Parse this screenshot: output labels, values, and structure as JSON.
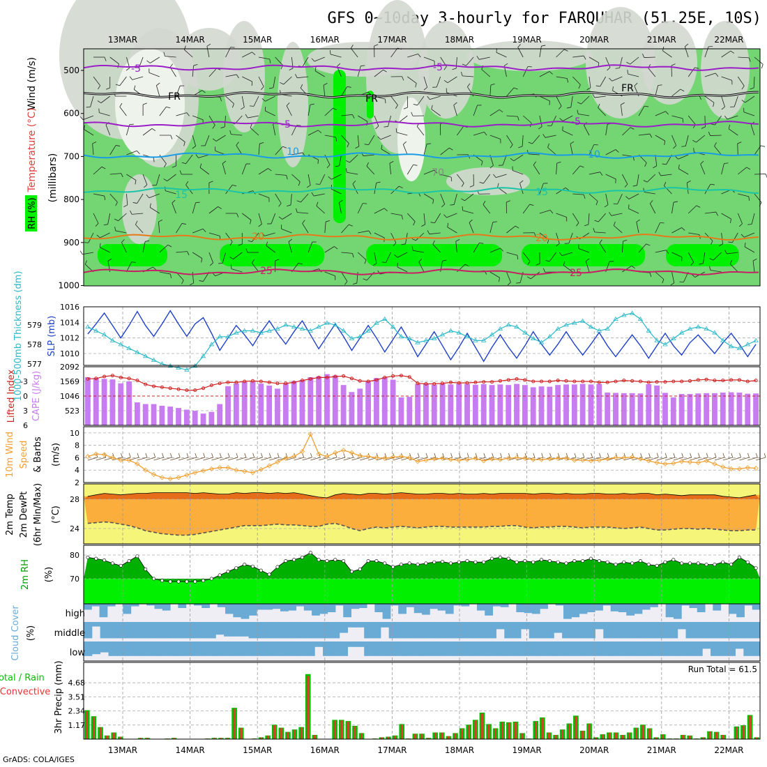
{
  "title": "GFS 0~10day 3-hourly for FARQUHAR (51.25E, 10S)",
  "footer": "GrADS: COLA/IGES",
  "dates": [
    "13MAR",
    "14MAR",
    "15MAR",
    "16MAR",
    "17MAR",
    "18MAR",
    "19MAR",
    "20MAR",
    "21MAR",
    "22MAR"
  ],
  "colors": {
    "rh_light": "#d3d8d0",
    "rh_mid": "#73d673",
    "rh_bright": "#00f000",
    "temp_m5": "#9b1fc6",
    "temp_fr": "#000000",
    "temp_10": "#1a9be6",
    "temp_15": "#1ac4a6",
    "temp_20": "#e67a1a",
    "temp_25": "#c81e64",
    "thickness": "#2ab9c8",
    "slp": "#2040c8",
    "lifted": "#d02020",
    "cape": "#c77cf0",
    "wind10": "#f0a030",
    "t2m_fill": "#e66e1a",
    "dew_fill": "#fcae3c",
    "yellow": "#f5f57a",
    "rh2m_dark": "#00b000",
    "rh2m_bright": "#00f000",
    "cloud": "#6aabd6",
    "cloud_bg": "#eeeef4",
    "precip_total": "#00c000",
    "precip_conv": "#f03030"
  },
  "panels": {
    "upper": {
      "ylabel_rh": "RH (%)",
      "ylabel_temp": "Temperature (°C)",
      "ylabel_wind": "Wind (m/s)",
      "ylabel_unit": "(millibars)",
      "levels": [
        "500",
        "600",
        "700",
        "800",
        "900",
        "1000"
      ],
      "contour_labels": [
        {
          "text": "-5",
          "kind": "m5"
        },
        {
          "text": "-5",
          "kind": "m5"
        },
        {
          "text": "FR",
          "kind": "fr"
        },
        {
          "text": "FR",
          "kind": "fr"
        },
        {
          "text": "FR",
          "kind": "fr"
        },
        {
          "text": "-5",
          "kind": "m5"
        },
        {
          "text": "-5",
          "kind": "m5"
        },
        {
          "text": "10",
          "kind": "c10"
        },
        {
          "text": "10",
          "kind": "c10"
        },
        {
          "text": "15",
          "kind": "c15"
        },
        {
          "text": "15",
          "kind": "c15"
        },
        {
          "text": "20",
          "kind": "c20"
        },
        {
          "text": "20",
          "kind": "c20"
        },
        {
          "text": "25",
          "kind": "c25"
        },
        {
          "text": "25",
          "kind": "c25"
        },
        {
          "text": "70",
          "kind": "rh"
        }
      ]
    },
    "slp": {
      "ylabel_left": "1000-500mb Thickness (dm)",
      "ylabel_right": "SLP (mb)",
      "left_ticks": [
        "579",
        "578",
        "577"
      ],
      "right_ticks": [
        "1016",
        "1014",
        "1012",
        "1010"
      ]
    },
    "li": {
      "ylabel_left": "Lifted Index",
      "ylabel_right": "CAPE (J/kg)",
      "left_ticks": [
        "-3",
        "0",
        "3",
        "6"
      ],
      "right_ticks": [
        "2092",
        "1569",
        "1046",
        "523"
      ]
    },
    "wind": {
      "ylabel_1": "10m Wind",
      "ylabel_2": "Speed",
      "ylabel_3": "& Barbs",
      "ylabel_unit": "(m/s)",
      "ticks": [
        "10",
        "8",
        "6",
        "4",
        "2"
      ]
    },
    "temp": {
      "ylabel_1": "2m Temp",
      "ylabel_2": "2m DewPt",
      "ylabel_3": "(6hr Min/Max)",
      "ylabel_unit": "(°C)",
      "ticks": [
        "28",
        "24"
      ]
    },
    "rh": {
      "ylabel": "2m RH",
      "ylabel_unit": "(%)",
      "ticks": [
        "80",
        "70"
      ]
    },
    "cloud": {
      "ylabel": "Cloud Cover",
      "ylabel_unit": "(%)",
      "levels": [
        "high",
        "middle",
        "low"
      ]
    },
    "precip": {
      "ylabel_1": "Total / Rain",
      "ylabel_2": "Convective",
      "ylabel_3": "3hr Precip (mm)",
      "ticks": [
        "4.68",
        "3.51",
        "2.34",
        "1.17"
      ],
      "run_total": "Run Total = 61.5"
    }
  },
  "chart_data": {
    "type": "meteogram",
    "x_step_hours": 3,
    "series_slp_mb": [
      1012.5,
      1013.8,
      1015.2,
      1013.6,
      1012,
      1013.6,
      1015.4,
      1013.6,
      1012.2,
      1013.8,
      1015.5,
      1013.8,
      1012.2,
      1013.8,
      1014.6,
      1012.6,
      1010.4,
      1012,
      1013.6,
      1012.4,
      1011,
      1012.7,
      1014.2,
      1012.6,
      1011.2,
      1012.8,
      1014.2,
      1012.4,
      1010.6,
      1012.2,
      1013.8,
      1012.2,
      1010.4,
      1012,
      1013.6,
      1012,
      1010.2,
      1011.8,
      1013.4,
      1011.6,
      1009.6,
      1011.2,
      1012.8,
      1011,
      1009.2,
      1010.8,
      1012.6,
      1010.8,
      1009,
      1010.8,
      1012.4,
      1010.8,
      1009.4,
      1011,
      1012.8,
      1011.2,
      1009.8,
      1011.2,
      1012.8,
      1011.2,
      1009.8,
      1011.2,
      1012.7,
      1011,
      1009.6,
      1011,
      1012.4,
      1011,
      1009.4,
      1011,
      1012.6,
      1011,
      1009.8,
      1011.4,
      1012.4,
      1011.2,
      1010,
      1011.4,
      1012.6,
      1011.2,
      1009.6,
      1011.2
    ],
    "series_thickness_dm": [
      578.9,
      578.7,
      578.5,
      578.2,
      578.0,
      577.8,
      577.6,
      577.4,
      577.2,
      577.0,
      576.9,
      576.8,
      576.7,
      576.9,
      577.4,
      578.0,
      578.4,
      578.4,
      578.6,
      578.7,
      578.7,
      578.6,
      578.7,
      578.8,
      579.0,
      578.9,
      578.8,
      578.7,
      578.9,
      579.1,
      579.0,
      578.7,
      578.3,
      578.4,
      578.7,
      579.1,
      579.3,
      578.9,
      578.4,
      578.3,
      578.1,
      578.2,
      578.3,
      578.5,
      578.7,
      578.6,
      578.4,
      578.2,
      578.2,
      578.5,
      578.8,
      579.0,
      578.9,
      578.6,
      578.3,
      578.1,
      578.4,
      578.8,
      579.0,
      579.1,
      579.2,
      578.9,
      578.7,
      578.8,
      579.3,
      579.5,
      579.6,
      579.3,
      578.7,
      578.2,
      578.0,
      578.3,
      578.6,
      578.8,
      578.9,
      578.8,
      578.6,
      578.2,
      577.9,
      577.8,
      578.0,
      578.2
    ],
    "series_lifted_index": [
      -3.5,
      -3.6,
      -4.0,
      -4.2,
      -3.8,
      -3.6,
      -3.2,
      -2.4,
      -2.0,
      -1.8,
      -1.6,
      -1.4,
      -1.2,
      -1.2,
      -1.6,
      -2.2,
      -2.6,
      -2.8,
      -2.8,
      -3.0,
      -3.1,
      -3.0,
      -2.8,
      -2.6,
      -2.6,
      -2.8,
      -3.2,
      -3.5,
      -3.8,
      -3.8,
      -4.0,
      -4.1,
      -3.6,
      -3.1,
      -3.0,
      -3.3,
      -3.8,
      -4.1,
      -4.2,
      -3.9,
      -2.6,
      -2.5,
      -2.5,
      -2.6,
      -2.8,
      -2.7,
      -2.7,
      -2.8,
      -2.9,
      -2.9,
      -3.1,
      -3.3,
      -3.5,
      -3.3,
      -3.0,
      -3.0,
      -3.0,
      -3.2,
      -3.1,
      -3.0,
      -3.0,
      -3.0,
      -2.8,
      -2.8,
      -3.0,
      -3.2,
      -3.1,
      -3.0,
      -2.8,
      -2.9,
      -2.9,
      -3.0,
      -3.0,
      -3.1,
      -3.3,
      -3.4,
      -3.2,
      -3.2,
      -3.3,
      -3.3,
      -3.0,
      -3.2
    ],
    "series_cape_jkg": [
      1720,
      1690,
      1660,
      1640,
      1500,
      1570,
      820,
      760,
      760,
      700,
      670,
      620,
      560,
      520,
      420,
      480,
      760,
      1400,
      1500,
      1550,
      1560,
      1490,
      1420,
      1310,
      1500,
      1580,
      1620,
      1720,
      1750,
      1830,
      1780,
      1440,
      1190,
      1310,
      1560,
      1690,
      1720,
      1630,
      1000,
      1020,
      1480,
      1480,
      1450,
      1490,
      1460,
      1490,
      1480,
      1450,
      1470,
      1440,
      1460,
      1440,
      1480,
      1440,
      1360,
      1390,
      1380,
      1440,
      1460,
      1460,
      1480,
      1460,
      1480,
      1170,
      1160,
      1150,
      1150,
      1140,
      1470,
      1420,
      1160,
      1000,
      1120,
      1120,
      1140,
      1150,
      1150,
      1170,
      1180,
      1170,
      1130,
      1140
    ],
    "series_wind10_ms": [
      6.2,
      6.6,
      6.5,
      6.0,
      5.6,
      5.6,
      5.0,
      4.0,
      3.3,
      2.8,
      2.6,
      2.8,
      3.2,
      3.6,
      3.9,
      4.2,
      4.4,
      4.4,
      4.0,
      3.8,
      3.6,
      4.1,
      4.7,
      5.3,
      5.9,
      6.2,
      7.0,
      9.8,
      6.6,
      6.2,
      6.8,
      7.2,
      6.8,
      6.3,
      6.2,
      6.0,
      5.9,
      6.1,
      6.2,
      6.0,
      5.4,
      5.6,
      5.8,
      5.9,
      5.7,
      5.6,
      5.7,
      5.9,
      5.5,
      5.8,
      5.7,
      5.9,
      6.0,
      5.9,
      5.7,
      5.7,
      5.8,
      5.9,
      5.9,
      5.6,
      5.6,
      5.5,
      5.6,
      5.8,
      6.0,
      6.0,
      6.1,
      5.8,
      5.5,
      5.2,
      5.0,
      5.1,
      5.4,
      5.3,
      5.2,
      5.5,
      5.0,
      4.5,
      4.2,
      4.2,
      4.4,
      4.3
    ],
    "series_t2m_c": [
      28.4,
      28.6,
      28.8,
      28.7,
      28.6,
      28.7,
      28.8,
      28.8,
      28.9,
      28.9,
      28.9,
      28.9,
      28.9,
      28.8,
      28.9,
      28.8,
      28.7,
      28.7,
      28.9,
      28.8,
      28.9,
      28.9,
      28.8,
      28.9,
      28.8,
      28.9,
      28.7,
      28.5,
      28.3,
      28.2,
      28.6,
      28.8,
      28.7,
      28.6,
      28.8,
      28.8,
      28.7,
      28.8,
      28.9,
      28.8,
      28.7,
      28.7,
      28.8,
      28.8,
      28.7,
      28.8,
      28.7,
      28.7,
      28.8,
      28.7,
      28.8,
      28.8,
      28.8,
      28.8,
      28.7,
      28.8,
      28.8,
      28.7,
      28.8,
      28.7,
      28.7,
      28.8,
      28.8,
      28.7,
      28.7,
      28.8,
      28.7,
      28.8,
      28.8,
      28.6,
      28.7,
      28.6,
      28.5,
      28.6,
      28.6,
      28.6,
      28.6,
      28.4,
      28.3,
      28.2,
      28.4,
      28.6
    ],
    "series_dew2m_c": [
      24.7,
      24.8,
      24.9,
      24.8,
      24.6,
      24.4,
      24.1,
      23.7,
      23.5,
      23.3,
      23.2,
      23.1,
      23.1,
      23.2,
      23.4,
      23.6,
      23.8,
      24.0,
      24.2,
      24.4,
      24.4,
      24.4,
      24.5,
      24.6,
      24.5,
      24.5,
      24.4,
      24.3,
      24.3,
      24.6,
      24.7,
      24.4,
      24.0,
      23.7,
      24.0,
      24.2,
      24.1,
      24.2,
      24.3,
      24.2,
      24.1,
      24.2,
      24.3,
      24.3,
      24.2,
      24.2,
      24.2,
      24.2,
      24.2,
      24.3,
      24.3,
      24.4,
      24.4,
      24.2,
      24.1,
      24.2,
      24.2,
      24.3,
      24.3,
      24.2,
      24.1,
      24.2,
      24.2,
      24.2,
      24.1,
      24.0,
      24.1,
      24.2,
      24.0,
      23.8,
      23.8,
      23.9,
      24.0,
      24.0,
      23.9,
      24.0,
      23.9,
      23.8,
      23.7,
      23.7,
      23.8,
      23.8
    ],
    "series_rh2m_pct": [
      79.0,
      78.5,
      77.8,
      76.5,
      75.5,
      77.5,
      79.5,
      74.0,
      70.0,
      69.2,
      68.8,
      68.8,
      68.8,
      68.8,
      69.2,
      70.0,
      71.5,
      73.0,
      74.5,
      76.0,
      75.2,
      73.5,
      71.8,
      75.0,
      77.5,
      78.0,
      79.0,
      81.0,
      78.0,
      77.5,
      78.0,
      77.5,
      73.0,
      74.0,
      77.5,
      77.5,
      76.5,
      75.0,
      76.0,
      76.5,
      76.0,
      76.5,
      77.0,
      77.2,
      76.5,
      77.0,
      77.5,
      77.0,
      77.0,
      78.5,
      79.0,
      78.5,
      77.0,
      77.5,
      77.0,
      78.0,
      77.5,
      77.0,
      76.5,
      77.5,
      77.5,
      78.5,
      77.5,
      77.0,
      76.0,
      77.0,
      76.5,
      77.5,
      76.0,
      75.5,
      77.0,
      78.0,
      76.5,
      76.5,
      76.5,
      76.0,
      76.0,
      77.0,
      76.0,
      79.0,
      77.0,
      74.5
    ],
    "series_precip_total_mm": [
      2.4,
      1.9,
      1.0,
      0.3,
      0.55,
      0.2,
      0.0,
      0.0,
      0.1,
      0.1,
      0.0,
      0.0,
      0.05,
      0.1,
      0.0,
      0.0,
      0.0,
      0.0,
      0.05,
      0.1,
      0.1,
      0.1,
      2.6,
      0.95,
      0.0,
      0.05,
      0.15,
      0.3,
      1.2,
      0.95,
      0.6,
      0.8,
      1.0,
      5.4,
      0.35,
      0.0,
      0.0,
      1.6,
      1.6,
      1.5,
      1.1,
      0.5,
      0.0,
      0.05,
      0.15,
      0.2,
      0.3,
      1.25,
      0.05,
      0.45,
      0.45,
      0.1,
      0.55,
      0.55,
      0.25,
      0.5,
      0.9,
      1.2,
      1.6,
      2.2,
      1.25,
      0.9,
      1.45,
      1.4,
      1.45,
      0.5,
      0.05,
      1.5,
      1.8,
      0.55,
      0.35,
      0.8,
      1.3,
      1.95,
      0.7,
      1.3,
      0.15,
      0.4,
      0.55,
      0.55,
      0.35,
      0.55,
      0.95,
      1.2,
      0.9,
      0.15,
      0.4,
      0.05,
      0.05,
      0.35,
      0.3,
      0.05,
      0.15,
      0.65,
      0.6,
      0.35,
      0.0,
      1.05,
      1.15,
      2.0,
      0.15
    ],
    "series_cloud_high_pct": [
      35,
      15,
      80,
      15,
      0,
      60,
      15,
      0,
      10,
      30,
      40,
      0,
      25,
      0,
      10,
      25,
      0,
      20,
      60,
      80,
      90,
      70,
      35,
      35,
      30,
      45,
      40,
      15,
      40,
      70,
      60,
      50,
      10,
      80,
      30,
      25,
      0,
      50,
      90,
      10,
      60,
      20,
      55,
      65,
      30,
      40,
      60,
      10,
      15,
      0,
      40,
      70,
      15,
      20,
      0,
      50,
      55,
      60,
      30,
      0,
      10,
      90,
      80,
      60,
      50,
      40,
      10,
      45,
      50,
      70,
      60,
      35,
      20,
      0,
      80,
      90,
      10,
      25,
      50,
      0,
      40,
      0,
      60,
      80,
      10,
      35
    ],
    "series_cloud_mid_pct": [
      90,
      25,
      90,
      90,
      90,
      90,
      90,
      90,
      90,
      90,
      90,
      90,
      90,
      90,
      90,
      90,
      70,
      80,
      80,
      80,
      90,
      90,
      90,
      90,
      90,
      90,
      90,
      90,
      90,
      90,
      90,
      60,
      30,
      30,
      90,
      90,
      30,
      90,
      90,
      90,
      90,
      90,
      90,
      90,
      90,
      90,
      90,
      90,
      90,
      90,
      40,
      90,
      90,
      40,
      90,
      90,
      90,
      60,
      90,
      90,
      90,
      90,
      40,
      90,
      90,
      90,
      90,
      90,
      90,
      90,
      90,
      90,
      40,
      90,
      90,
      90,
      90,
      90,
      90,
      90,
      90,
      90
    ],
    "series_cloud_low_pct": [
      80,
      70,
      60,
      80,
      80,
      80,
      80,
      80,
      80,
      80,
      80,
      80,
      80,
      80,
      80,
      80,
      80,
      80,
      80,
      80,
      80,
      80,
      80,
      80,
      80,
      80,
      80,
      80,
      30,
      80,
      80,
      80,
      30,
      30,
      80,
      80,
      80,
      80,
      80,
      80,
      80,
      80,
      80,
      80,
      80,
      80,
      80,
      80,
      80,
      80,
      80,
      80,
      80,
      80,
      80,
      80,
      80,
      80,
      80,
      80,
      80,
      80,
      80,
      80,
      80,
      80,
      80,
      80,
      80,
      80,
      80,
      80,
      80,
      80,
      80,
      40,
      80,
      80,
      80,
      40,
      80,
      80
    ]
  }
}
